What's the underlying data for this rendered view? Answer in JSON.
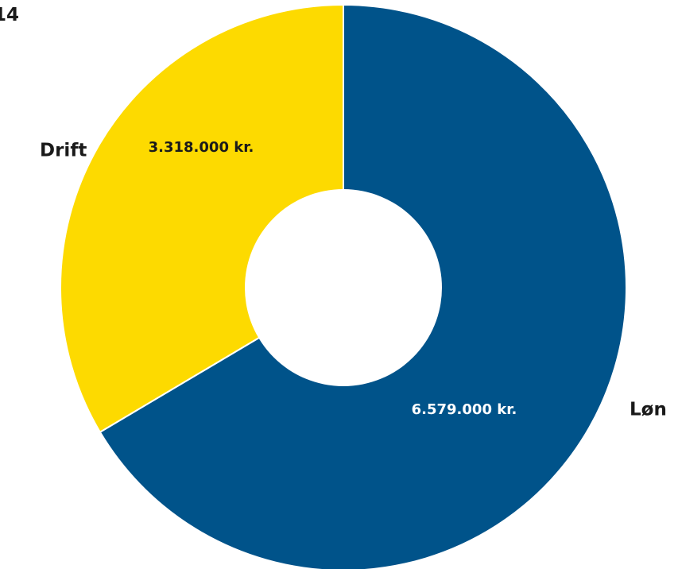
{
  "chart_data": {
    "type": "pie",
    "donut": true,
    "title_fragment": "14",
    "categories": [
      "Løn",
      "Drift"
    ],
    "values": [
      6579000,
      3318000
    ],
    "value_labels": [
      "6.579.000 kr.",
      "3.318.000 kr."
    ],
    "colors": [
      "#00538a",
      "#fdda00"
    ],
    "value_label_colors": [
      "#ffffff",
      "#1a1a1a"
    ]
  }
}
